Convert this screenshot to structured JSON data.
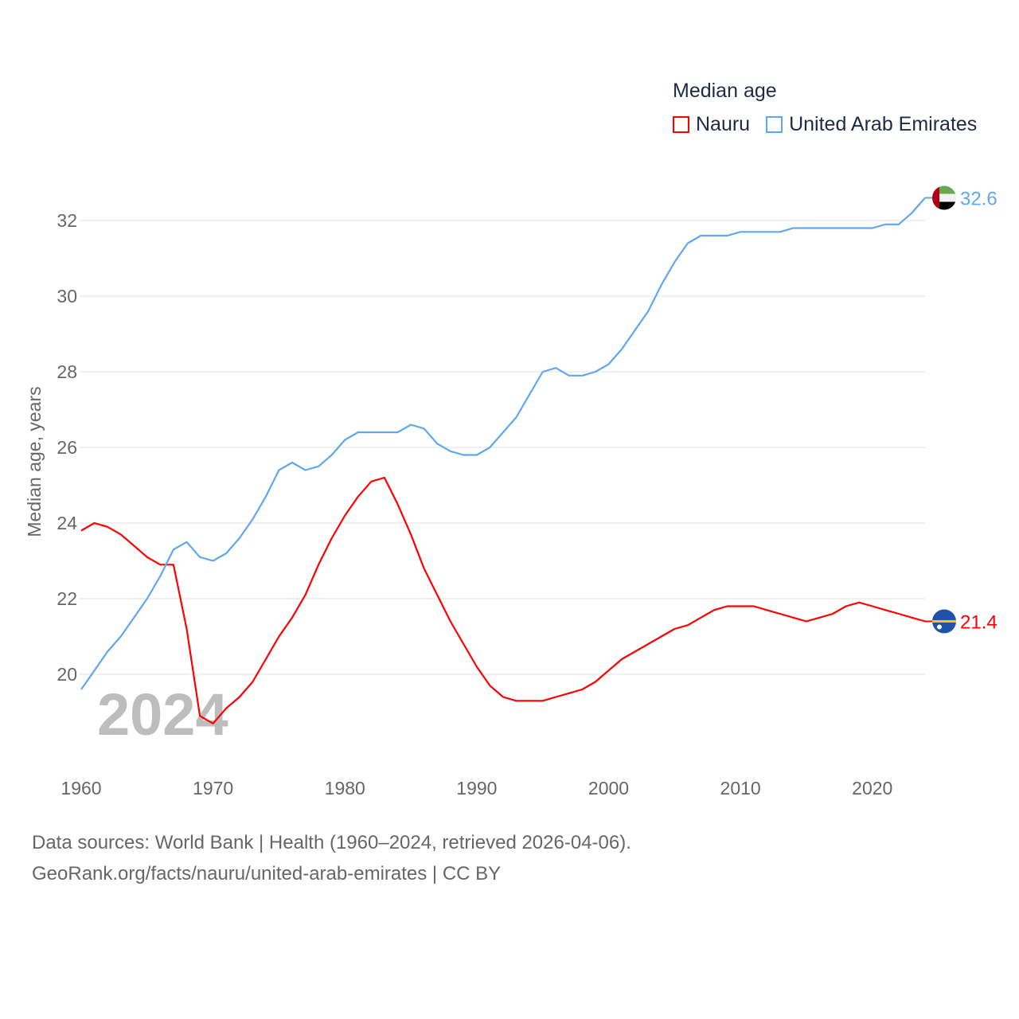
{
  "chart_data": {
    "type": "line",
    "title": "Median age",
    "xlabel": "",
    "ylabel": "Median age, years",
    "xlim": [
      1960,
      2024
    ],
    "ylim": [
      18,
      33
    ],
    "yticks": [
      20,
      22,
      24,
      26,
      28,
      30,
      32
    ],
    "xticks": [
      1960,
      1970,
      1980,
      1990,
      2000,
      2010,
      2020
    ],
    "grid": true,
    "legend_placement": "top-right",
    "year_watermark": "2024",
    "x_start": 1960,
    "series": [
      {
        "name": "Nauru",
        "color": "#ff0000",
        "end_label": "21.4",
        "values": [
          23.8,
          24.0,
          23.9,
          23.7,
          23.4,
          23.1,
          22.9,
          22.9,
          21.2,
          18.9,
          18.7,
          19.1,
          19.4,
          19.8,
          20.4,
          21.0,
          21.5,
          22.1,
          22.9,
          23.6,
          24.2,
          24.7,
          25.1,
          25.2,
          24.5,
          23.7,
          22.8,
          22.1,
          21.4,
          20.8,
          20.2,
          19.7,
          19.4,
          19.3,
          19.3,
          19.3,
          19.4,
          19.5,
          19.6,
          19.8,
          20.1,
          20.4,
          20.6,
          20.8,
          21.0,
          21.2,
          21.3,
          21.5,
          21.7,
          21.8,
          21.8,
          21.8,
          21.7,
          21.6,
          21.5,
          21.4,
          21.5,
          21.6,
          21.8,
          21.9,
          21.8,
          21.7,
          21.6,
          21.5,
          21.4
        ]
      },
      {
        "name": "United Arab Emirates",
        "color": "#5fa8ee",
        "end_label": "32.6",
        "values": [
          19.6,
          20.1,
          20.6,
          21.0,
          21.5,
          22.0,
          22.6,
          23.3,
          23.5,
          23.1,
          23.0,
          23.2,
          23.6,
          24.1,
          24.7,
          25.4,
          25.6,
          25.4,
          25.5,
          25.8,
          26.2,
          26.4,
          26.4,
          26.4,
          26.4,
          26.6,
          26.5,
          26.1,
          25.9,
          25.8,
          25.8,
          26.0,
          26.4,
          26.8,
          27.4,
          28.0,
          28.1,
          27.9,
          27.9,
          28.0,
          28.2,
          28.6,
          29.1,
          29.6,
          30.3,
          30.9,
          31.4,
          31.6,
          31.6,
          31.6,
          31.7,
          31.7,
          31.7,
          31.7,
          31.8,
          31.8,
          31.8,
          31.8,
          31.8,
          31.8,
          31.8,
          31.9,
          31.9,
          32.2,
          32.6
        ]
      }
    ]
  },
  "legend": {
    "title": "Median age",
    "items": [
      "Nauru",
      "United Arab Emirates"
    ]
  },
  "footer": {
    "line1": "Data sources: World Bank | Health (1960–2024, retrieved 2026-04-06).",
    "line2": "GeoRank.org/facts/nauru/united-arab-emirates | CC BY"
  }
}
